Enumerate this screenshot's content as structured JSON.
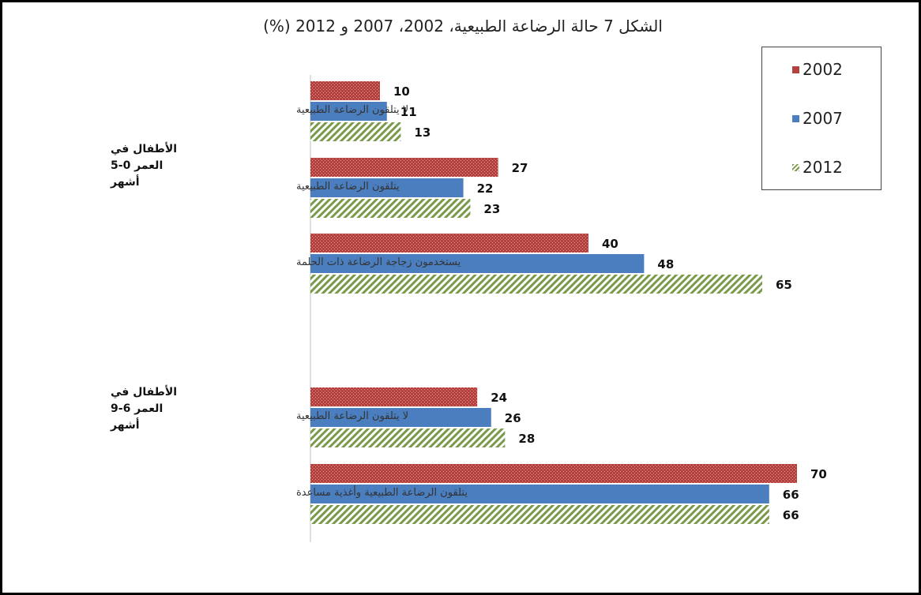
{
  "chart_data": {
    "type": "bar",
    "orientation": "horizontal",
    "title": "الشكل 7 حالة الرضاعة الطبيعية، 2002، 2007 و 2012 (%)",
    "xlim": [
      0,
      70
    ],
    "grid": false,
    "legend_position": "top-right",
    "groups": [
      {
        "label_lines": [
          "الأطفال في",
          "العمر 0-5",
          "أشهر"
        ],
        "categories": [
          "لا يتلقون الرضاعة الطبيعية",
          "يتلقون الرضاعة الطبيعية",
          "يستخدمون زجاجة الرضاعة ذات الحلمة"
        ]
      },
      {
        "label_lines": [
          "الأطفال في",
          "العمر 6-9",
          "أشهر"
        ],
        "categories": [
          "لا يتلقون الرضاعة الطبيعية",
          "يتلقون الرضاعة الطبيعية وأغذية مساعدة"
        ]
      }
    ],
    "series": [
      {
        "name": "2002",
        "color": "#b5413f",
        "pattern": "dotted",
        "values": [
          10,
          27,
          40,
          24,
          70
        ]
      },
      {
        "name": "2007",
        "color": "#4a7ebf",
        "pattern": "solid",
        "values": [
          11,
          22,
          48,
          26,
          66
        ]
      },
      {
        "name": "2012",
        "color": "#7a9a4a",
        "pattern": "hatched",
        "values": [
          13,
          23,
          65,
          28,
          66
        ]
      }
    ]
  }
}
